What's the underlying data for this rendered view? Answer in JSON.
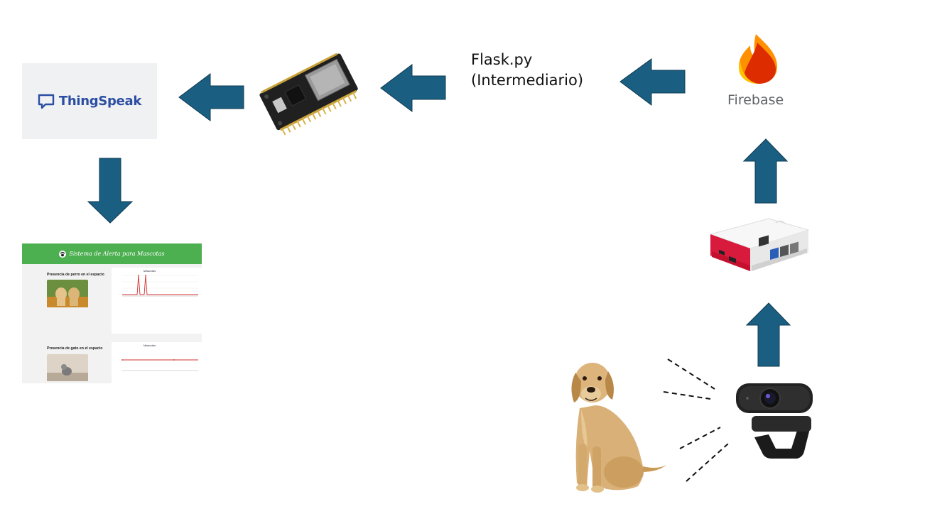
{
  "nodes": {
    "thingspeak": {
      "label": "ThingSpeak",
      "icon": "speech-bubble-icon"
    },
    "esp32": {
      "icon": "microcontroller-board-icon"
    },
    "flask": {
      "line1": "Flask.py",
      "line2": "(Intermediario)"
    },
    "firebase": {
      "label": "Firebase",
      "icon": "flame-icon"
    },
    "raspberry_pi": {
      "icon": "raspberry-pi-case-icon"
    },
    "webcam": {
      "icon": "webcam-icon"
    },
    "dog": {
      "icon": "dog-icon"
    }
  },
  "dashboard": {
    "header_title": "Sistema de Alerta para Mascotas",
    "dog_panel": {
      "title": "Presencia de perro en el espacio",
      "chart_title": "Mascotas"
    },
    "cat_panel": {
      "title": "Presencia de gato en el espacio",
      "chart_title": "Mascotas"
    },
    "header_color": "#4caf50"
  },
  "colors": {
    "arrow_fill": "#1a5f82",
    "arrow_stroke": "#0d3850",
    "thingspeak_text": "#2b4ea2",
    "firebase_text": "#5f6368"
  }
}
